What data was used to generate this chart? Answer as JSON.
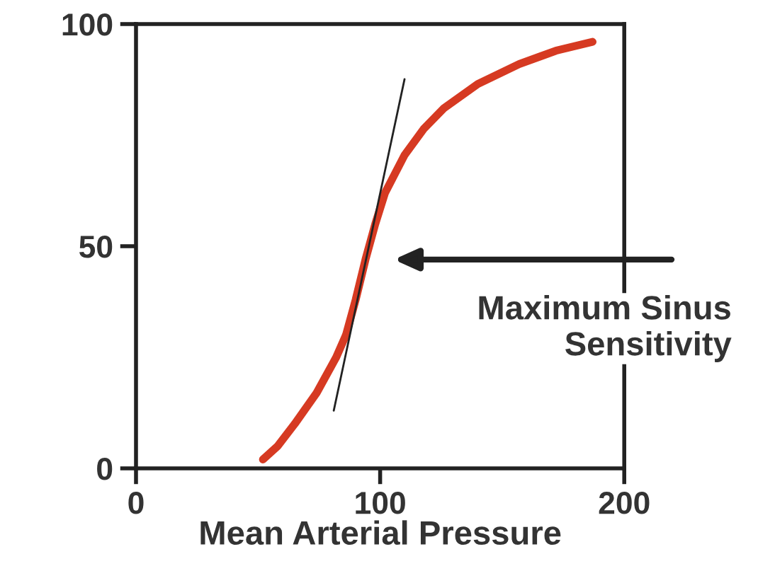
{
  "chart_data": {
    "type": "line",
    "xlabel": "Mean Arterial Pressure",
    "xlim": [
      0,
      200
    ],
    "ylim": [
      0,
      100
    ],
    "xticks": [
      0,
      100,
      200
    ],
    "yticks": [
      0,
      50,
      100
    ],
    "grid": false,
    "legend": false,
    "marker": "none",
    "line_style": "solid",
    "series": [
      {
        "color": "#d63a22",
        "x": [
          52,
          58,
          65,
          74,
          82,
          86,
          90,
          94,
          98,
          102,
          110,
          118,
          126,
          140,
          157,
          172,
          187
        ],
        "values": [
          2,
          5,
          10,
          17,
          25,
          30,
          38,
          47,
          55,
          62,
          70.5,
          76.5,
          81,
          86.5,
          91,
          94,
          96
        ]
      },
      {
        "type": "line",
        "color": "#222222",
        "x": [
          81,
          110
        ],
        "values": [
          13,
          87.6
        ]
      }
    ],
    "annotations": [
      "Maximum Sinus\nSensitivity"
    ]
  }
}
